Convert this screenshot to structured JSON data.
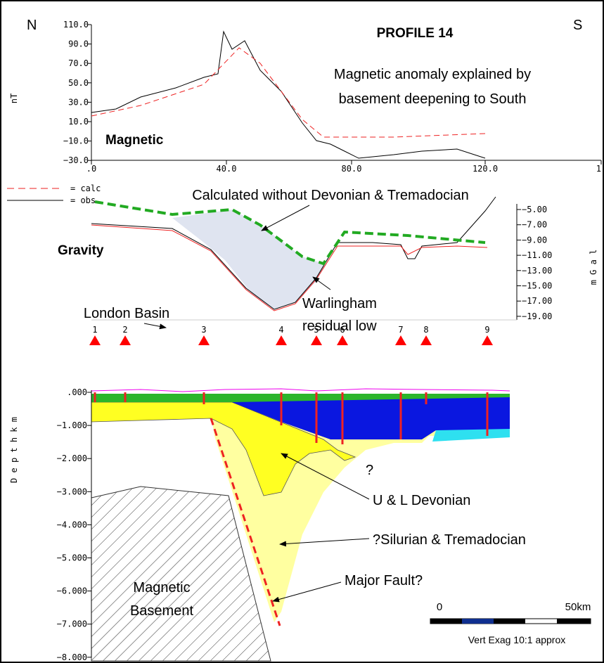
{
  "header": {
    "north": "N",
    "south": "S",
    "title": "PROFILE 14"
  },
  "magnetic": {
    "label": "Magnetic",
    "axis_label": "nT",
    "annotation": [
      "Magnetic anomaly explained by",
      "basement deepening to South"
    ],
    "yticks": [
      "110.0",
      "90.0",
      "70.0",
      "50.0",
      "30.0",
      "10.0",
      "−10.0",
      "−30.0"
    ],
    "xticks": [
      ".0",
      "40.0",
      "80.0",
      "120.0",
      "1"
    ]
  },
  "legend": {
    "calc": "= calc",
    "obs": "= obs"
  },
  "gravity": {
    "label": "Gravity",
    "axis_label": "m G a l",
    "annotation": "Calculated without Devonian & Tremadocian",
    "residual": [
      "Warlingham",
      "residual low"
    ],
    "yticks": [
      "−5.00",
      "−7.00",
      "−9.00",
      "−11.00",
      "−13.00",
      "−15.00",
      "−17.00",
      "−19.00"
    ]
  },
  "section": {
    "london_basin": "London Basin",
    "stations": [
      "1",
      "2",
      "3",
      "4",
      "5",
      "6",
      "7",
      "8",
      "9"
    ],
    "axis_label": "D e p t h     k m",
    "yticks": [
      ".000",
      "−1.000",
      "−2.000",
      "−3.000",
      "−4.000",
      "−5.000",
      "−6.000",
      "−7.000",
      "−8.000"
    ],
    "question": "?",
    "devonian": "U & L Devonian",
    "silurian": "?Silurian & Tremadocian",
    "fault": "Major Fault?",
    "basement": [
      "Magnetic",
      "Basement"
    ]
  },
  "scale": {
    "start": "0",
    "end": "50km",
    "note": "Vert Exag 10:1 approx"
  }
}
